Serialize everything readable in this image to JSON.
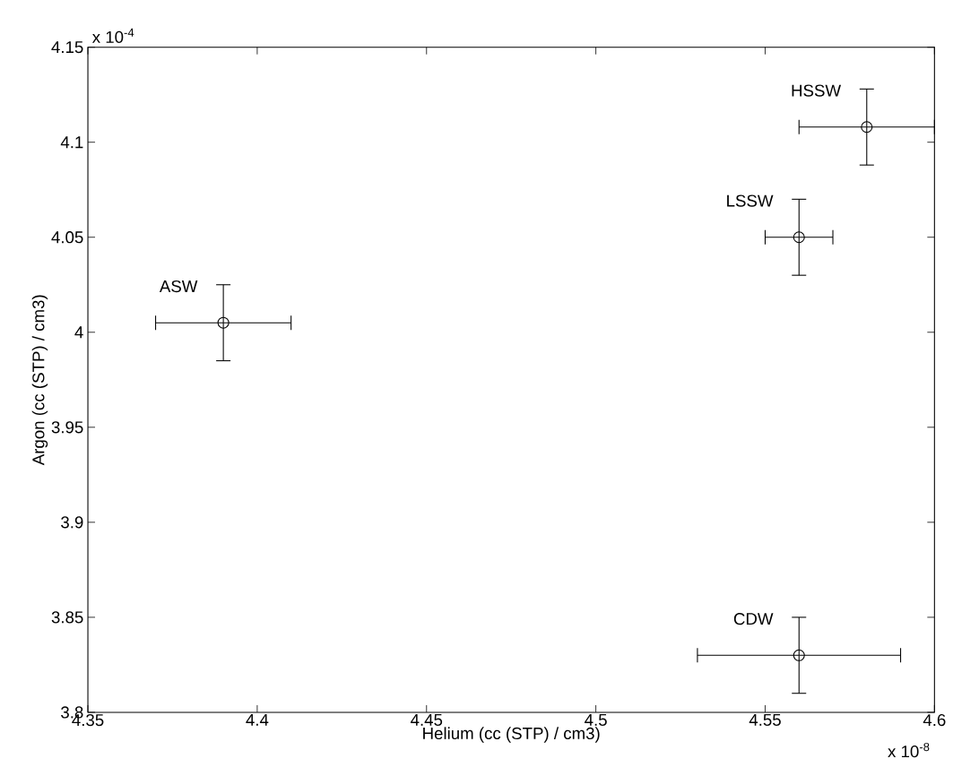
{
  "chart_data": {
    "type": "scatter",
    "xlabel": "Helium (cc (STP) / cm3)",
    "ylabel": "Argon (cc (STP) / cm3)",
    "xlim": [
      4.35,
      4.6
    ],
    "ylim": [
      3.8,
      4.15
    ],
    "xticks": [
      4.35,
      4.4,
      4.45,
      4.5,
      4.55,
      4.6
    ],
    "yticks": [
      3.8,
      3.85,
      3.9,
      3.95,
      4,
      4.05,
      4.1,
      4.15
    ],
    "marker": "circle",
    "grid": false,
    "series": [
      {
        "name": "ASW",
        "color": "#000000",
        "x": [
          4.39
        ],
        "values": [
          4.005
        ],
        "errors": [
          0.02
        ],
        "xerrors": [
          0.02
        ]
      },
      {
        "name": "HSSW",
        "color": "#000000",
        "x": [
          4.58
        ],
        "values": [
          4.108
        ],
        "errors": [
          0.02
        ],
        "xerrors": [
          0.02
        ]
      },
      {
        "name": "LSSW",
        "color": "#000000",
        "x": [
          4.56
        ],
        "values": [
          4.05
        ],
        "errors": [
          0.02
        ],
        "xerrors": [
          0.01
        ]
      },
      {
        "name": "CDW",
        "color": "#000000",
        "x": [
          4.56
        ],
        "values": [
          3.83
        ],
        "errors": [
          0.02
        ],
        "xerrors": [
          0.03
        ]
      }
    ],
    "annotations": [
      "x 10$^{-4}$",
      "x 10$^{-8}$"
    ]
  }
}
